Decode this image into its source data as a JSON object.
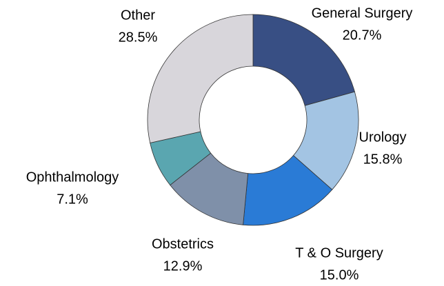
{
  "chart_data": {
    "type": "donut",
    "categories": [
      "General Surgery",
      "Urology",
      "T & O Surgery",
      "Obstetrics",
      "Ophthalmology",
      "Other"
    ],
    "values": [
      20.7,
      15.8,
      15.0,
      12.9,
      7.1,
      28.5
    ],
    "value_labels": [
      "20.7%",
      "15.8%",
      "15.0%",
      "12.9%",
      "7.1%",
      "28.5%"
    ],
    "colors": [
      "#384f84",
      "#a3c4e3",
      "#2a7bd6",
      "#7f90a9",
      "#5aa6b0",
      "#d8d6db"
    ]
  }
}
